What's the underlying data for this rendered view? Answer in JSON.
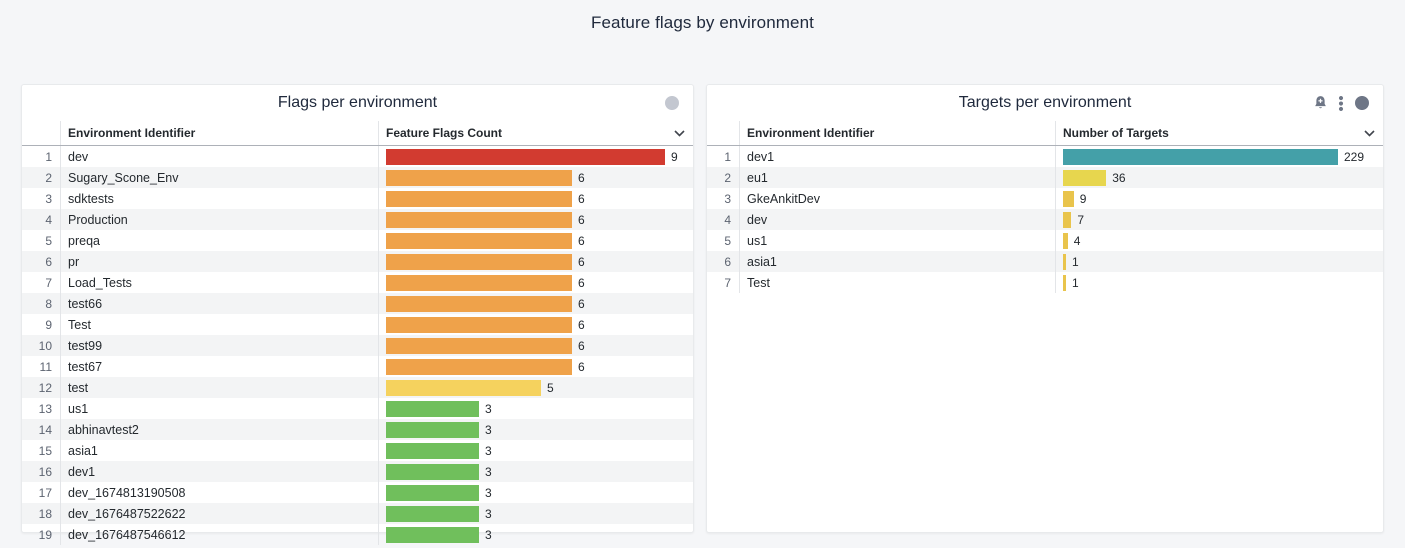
{
  "page": {
    "title": "Feature flags by environment",
    "background_color": "#f5f6f8"
  },
  "panels": [
    {
      "title": "Flags per environment",
      "icons": [
        "globe-icon"
      ],
      "columns": [
        "Environment Identifier",
        "Feature Flags Count"
      ],
      "rows": [
        {
          "index": 1,
          "id": "dev",
          "value": 9,
          "color": "#d23b30"
        },
        {
          "index": 2,
          "id": "Sugary_Scone_Env",
          "value": 6,
          "color": "#efa24a"
        },
        {
          "index": 3,
          "id": "sdktests",
          "value": 6,
          "color": "#efa24a"
        },
        {
          "index": 4,
          "id": "Production",
          "value": 6,
          "color": "#efa24a"
        },
        {
          "index": 5,
          "id": "preqa",
          "value": 6,
          "color": "#efa24a"
        },
        {
          "index": 6,
          "id": "pr",
          "value": 6,
          "color": "#efa24a"
        },
        {
          "index": 7,
          "id": "Load_Tests",
          "value": 6,
          "color": "#efa24a"
        },
        {
          "index": 8,
          "id": "test66",
          "value": 6,
          "color": "#efa24a"
        },
        {
          "index": 9,
          "id": "Test",
          "value": 6,
          "color": "#efa24a"
        },
        {
          "index": 10,
          "id": "test99",
          "value": 6,
          "color": "#efa24a"
        },
        {
          "index": 11,
          "id": "test67",
          "value": 6,
          "color": "#efa24a"
        },
        {
          "index": 12,
          "id": "test",
          "value": 5,
          "color": "#f5d25e"
        },
        {
          "index": 13,
          "id": "us1",
          "value": 3,
          "color": "#70bf5c"
        },
        {
          "index": 14,
          "id": "abhinavtest2",
          "value": 3,
          "color": "#70bf5c"
        },
        {
          "index": 15,
          "id": "asia1",
          "value": 3,
          "color": "#70bf5c"
        },
        {
          "index": 16,
          "id": "dev1",
          "value": 3,
          "color": "#70bf5c"
        },
        {
          "index": 17,
          "id": "dev_1674813190508",
          "value": 3,
          "color": "#70bf5c"
        },
        {
          "index": 18,
          "id": "dev_1676487522622",
          "value": 3,
          "color": "#70bf5c"
        },
        {
          "index": 19,
          "id": "dev_1676487546612",
          "value": 3,
          "color": "#70bf5c"
        }
      ]
    },
    {
      "title": "Targets per environment",
      "icons": [
        "bell-plus-icon",
        "kebab-menu-icon",
        "globe-icon"
      ],
      "columns": [
        "Environment Identifier",
        "Number of Targets"
      ],
      "rows": [
        {
          "index": 1,
          "id": "dev1",
          "value": 229,
          "color": "#44a0a8"
        },
        {
          "index": 2,
          "id": "eu1",
          "value": 36,
          "color": "#e7d64e"
        },
        {
          "index": 3,
          "id": "GkeAnkitDev",
          "value": 9,
          "color": "#e9c44c"
        },
        {
          "index": 4,
          "id": "dev",
          "value": 7,
          "color": "#e9c44c"
        },
        {
          "index": 5,
          "id": "us1",
          "value": 4,
          "color": "#e9c44c"
        },
        {
          "index": 6,
          "id": "asia1",
          "value": 1,
          "color": "#e9c44c"
        },
        {
          "index": 7,
          "id": "Test",
          "value": 1,
          "color": "#e9c44c"
        }
      ]
    }
  ],
  "chart_data": [
    {
      "type": "bar",
      "title": "Flags per environment",
      "xlabel": "Feature Flags Count",
      "ylabel": "Environment Identifier",
      "categories": [
        "dev",
        "Sugary_Scone_Env",
        "sdktests",
        "Production",
        "preqa",
        "pr",
        "Load_Tests",
        "test66",
        "Test",
        "test99",
        "test67",
        "test",
        "us1",
        "abhinavtest2",
        "asia1",
        "dev1",
        "dev_1674813190508",
        "dev_1676487522622",
        "dev_1676487546612"
      ],
      "values": [
        9,
        6,
        6,
        6,
        6,
        6,
        6,
        6,
        6,
        6,
        6,
        5,
        3,
        3,
        3,
        3,
        3,
        3,
        3
      ],
      "orientation": "horizontal",
      "xlim": [
        0,
        9
      ]
    },
    {
      "type": "bar",
      "title": "Targets per environment",
      "xlabel": "Number of Targets",
      "ylabel": "Environment Identifier",
      "categories": [
        "dev1",
        "eu1",
        "GkeAnkitDev",
        "dev",
        "us1",
        "asia1",
        "Test"
      ],
      "values": [
        229,
        36,
        9,
        7,
        4,
        1,
        1
      ],
      "orientation": "horizontal",
      "xlim": [
        0,
        229
      ]
    }
  ]
}
